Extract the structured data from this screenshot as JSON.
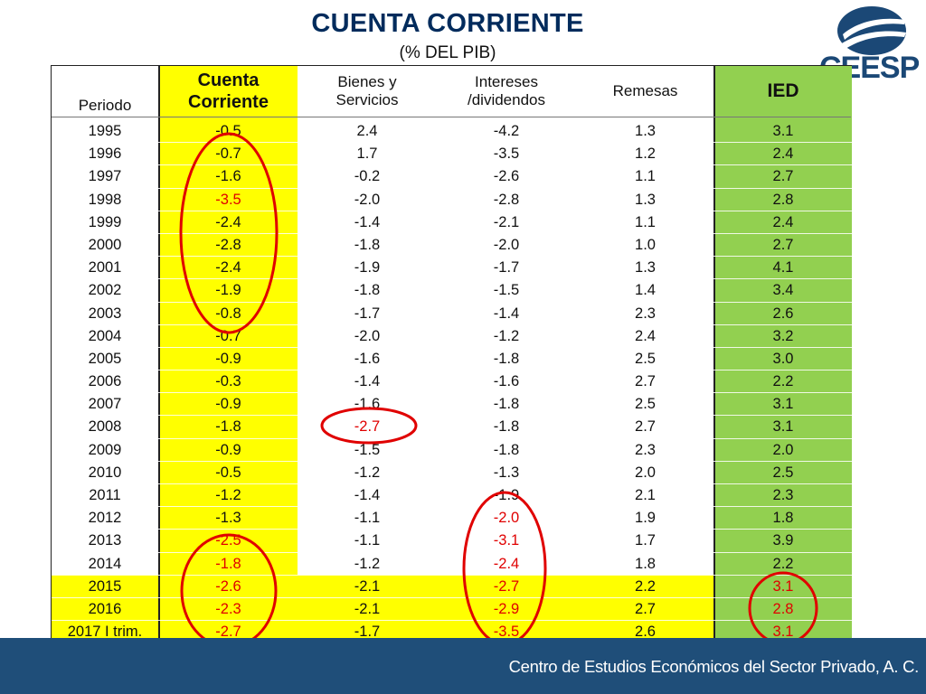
{
  "title": "CUENTA CORRIENTE",
  "subtitle": "(% DEL PIB)",
  "logo_text": "CEESP",
  "table": {
    "headers": {
      "periodo": "Periodo",
      "cc_line1": "Cuenta",
      "cc_line2": "Corriente",
      "bs_line1": "Bienes y",
      "bs_line2": "Servicios",
      "int_line1": "Intereses",
      "int_line2": "/dividendos",
      "remesas": "Remesas",
      "ied": "IED"
    },
    "rows": [
      [
        "1995",
        "-0.5",
        "2.4",
        "-4.2",
        "1.3",
        "3.1"
      ],
      [
        "1996",
        "-0.7",
        "1.7",
        "-3.5",
        "1.2",
        "2.4"
      ],
      [
        "1997",
        "-1.6",
        "-0.2",
        "-2.6",
        "1.1",
        "2.7"
      ],
      [
        "1998",
        "-3.5",
        "-2.0",
        "-2.8",
        "1.3",
        "2.8"
      ],
      [
        "1999",
        "-2.4",
        "-1.4",
        "-2.1",
        "1.1",
        "2.4"
      ],
      [
        "2000",
        "-2.8",
        "-1.8",
        "-2.0",
        "1.0",
        "2.7"
      ],
      [
        "2001",
        "-2.4",
        "-1.9",
        "-1.7",
        "1.3",
        "4.1"
      ],
      [
        "2002",
        "-1.9",
        "-1.8",
        "-1.5",
        "1.4",
        "3.4"
      ],
      [
        "2003",
        "-0.8",
        "-1.7",
        "-1.4",
        "2.3",
        "2.6"
      ],
      [
        "2004",
        "-0.7",
        "-2.0",
        "-1.2",
        "2.4",
        "3.2"
      ],
      [
        "2005",
        "-0.9",
        "-1.6",
        "-1.8",
        "2.5",
        "3.0"
      ],
      [
        "2006",
        "-0.3",
        "-1.4",
        "-1.6",
        "2.7",
        "2.2"
      ],
      [
        "2007",
        "-0.9",
        "-1.6",
        "-1.8",
        "2.5",
        "3.1"
      ],
      [
        "2008",
        "-1.8",
        "-2.7",
        "-1.8",
        "2.7",
        "3.1"
      ],
      [
        "2009",
        "-0.9",
        "-1.5",
        "-1.8",
        "2.3",
        "2.0"
      ],
      [
        "2010",
        "-0.5",
        "-1.2",
        "-1.3",
        "2.0",
        "2.5"
      ],
      [
        "2011",
        "-1.2",
        "-1.4",
        "-1.9",
        "2.1",
        "2.3"
      ],
      [
        "2012",
        "-1.3",
        "-1.1",
        "-2.0",
        "1.9",
        "1.8"
      ],
      [
        "2013",
        "-2.5",
        "-1.1",
        "-3.1",
        "1.7",
        "3.9"
      ],
      [
        "2014",
        "-1.8",
        "-1.2",
        "-2.4",
        "1.8",
        "2.2"
      ],
      [
        "2015",
        "-2.6",
        "-2.1",
        "-2.7",
        "2.2",
        "3.1"
      ],
      [
        "2016",
        "-2.3",
        "-2.1",
        "-2.9",
        "2.7",
        "2.8"
      ],
      [
        "2017 I trim.",
        "-2.7",
        "-1.7",
        "-3.5",
        "2.6",
        "3.1"
      ]
    ],
    "red_cells": [
      [
        3,
        1
      ],
      [
        13,
        2
      ],
      [
        17,
        3
      ],
      [
        18,
        1
      ],
      [
        18,
        3
      ],
      [
        19,
        1
      ],
      [
        19,
        3
      ],
      [
        20,
        1
      ],
      [
        20,
        3
      ],
      [
        20,
        5
      ],
      [
        21,
        1
      ],
      [
        21,
        3
      ],
      [
        21,
        5
      ],
      [
        22,
        1
      ],
      [
        22,
        3
      ],
      [
        22,
        5
      ]
    ]
  },
  "colors": {
    "title": "#002b5c",
    "cuenta_corriente_highlight": "#ffff00",
    "ied_highlight": "#92d050",
    "annotation_red": "#e00000",
    "footer_bar": "#1f4e79"
  },
  "footer": {
    "text": "Centro de Estudios Económicos del Sector Privado, A. C."
  }
}
